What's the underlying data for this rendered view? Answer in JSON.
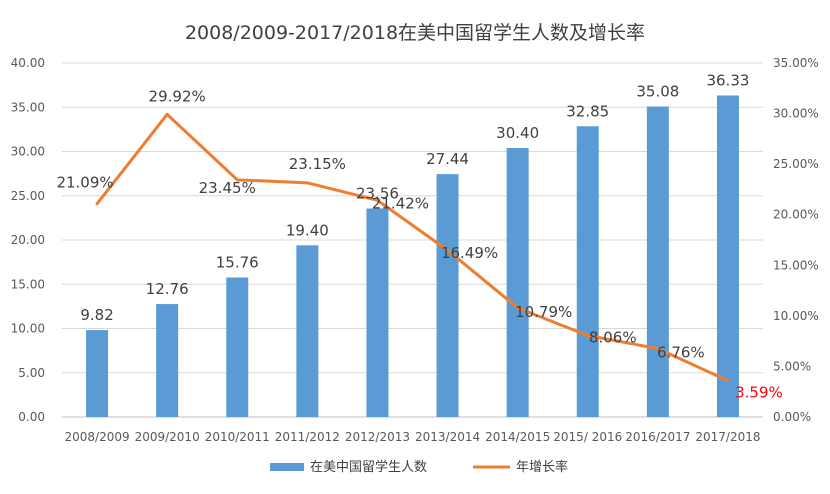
{
  "chart_data": {
    "type": "bar+line",
    "title": "2008/2009-2017/2018在美中国留学生人数及增长率",
    "categories": [
      "2008/2009",
      "2009/2010",
      "2010/2011",
      "2011/2012",
      "2012/2013",
      "2013/2014",
      "2014/2015",
      "2015/ 2016",
      "2016/2017",
      "2017/2018"
    ],
    "series": [
      {
        "name": "在美中国留学生人数",
        "type": "bar",
        "axis": "left",
        "color": "#5b9bd5",
        "values": [
          9.82,
          12.76,
          15.76,
          19.4,
          23.56,
          27.44,
          30.4,
          32.85,
          35.08,
          36.33
        ],
        "labels": [
          "9.82",
          "12.76",
          "15.76",
          "19.40",
          "23.56",
          "27.44",
          "30.40",
          "32.85",
          "35.08",
          "36.33"
        ]
      },
      {
        "name": "年增长率",
        "type": "line",
        "axis": "right",
        "color": "#ed7d31",
        "values": [
          21.09,
          29.92,
          23.45,
          23.15,
          21.42,
          16.49,
          10.79,
          8.06,
          6.76,
          3.59
        ],
        "labels": [
          "21.09%",
          "29.92%",
          "23.45%",
          "23.15%",
          "21.42%",
          "16.49%",
          "10.79%",
          "8.06%",
          "6.76%",
          "3.59%"
        ],
        "highlight_last_color": "#ff0000"
      }
    ],
    "y_left": {
      "ylim": [
        0,
        40
      ],
      "ticks": [
        "0.00",
        "5.00",
        "10.00",
        "15.00",
        "20.00",
        "25.00",
        "30.00",
        "35.00",
        "40.00"
      ]
    },
    "y_right": {
      "ylim": [
        0,
        35
      ],
      "ticks": [
        "0.00%",
        "5.00%",
        "10.00%",
        "15.00%",
        "20.00%",
        "25.00%",
        "30.00%",
        "35.00%"
      ]
    },
    "grid": true,
    "legend_position": "bottom"
  }
}
